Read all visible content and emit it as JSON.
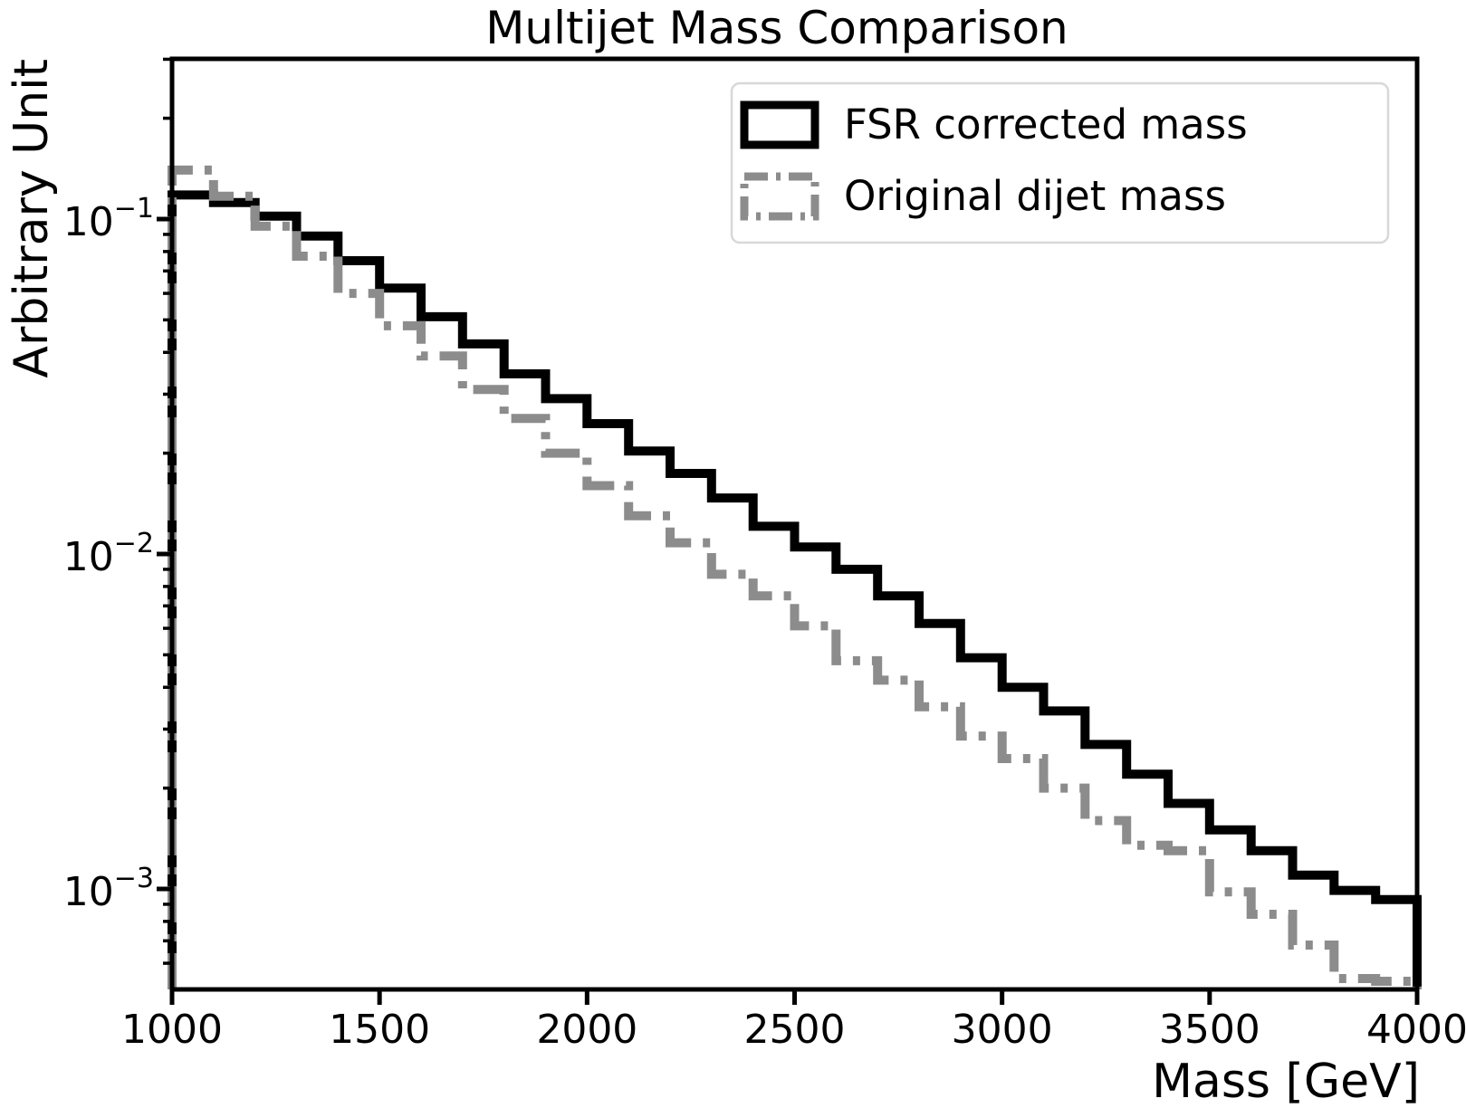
{
  "title": "Multijet Mass Comparison",
  "axes": {
    "xlabel": "Mass [GeV]",
    "ylabel": "Arbitrary Unit",
    "x_tick_labels": [
      "1000",
      "1500",
      "2000",
      "2500",
      "3000",
      "3500",
      "4000"
    ],
    "x_tick_values": [
      1000,
      1500,
      2000,
      2500,
      3000,
      3500,
      4000
    ],
    "y_tick_exponents": [
      "−1",
      "−2",
      "−3"
    ],
    "y_tick_values": [
      0.1,
      0.01,
      0.001
    ],
    "y_scale": "log",
    "grid": false
  },
  "legend": {
    "position": "upper right",
    "items": [
      {
        "label": "FSR corrected mass",
        "color": "#000000",
        "style": "solid"
      },
      {
        "label": "Original dijet mass",
        "color": "#8c8c8c",
        "style": "dashdot"
      }
    ]
  },
  "colors": {
    "fsr_line": "#000000",
    "dijet_line": "#8c8c8c",
    "legend_border": "#d8d8d8",
    "background": "#ffffff"
  },
  "chart_data": {
    "type": "step-histogram",
    "title": "Multijet Mass Comparison",
    "xlabel": "Mass [GeV]",
    "ylabel": "Arbitrary Unit",
    "xlim": [
      1000,
      4000
    ],
    "ylim": [
      0.0005,
      0.3
    ],
    "bin_edges": [
      1000,
      1100,
      1200,
      1300,
      1400,
      1500,
      1600,
      1700,
      1800,
      1900,
      2000,
      2100,
      2200,
      2300,
      2400,
      2500,
      2600,
      2700,
      2800,
      2900,
      3000,
      3100,
      3200,
      3300,
      3400,
      3500,
      3600,
      3700,
      3800,
      3900,
      4000
    ],
    "series": [
      {
        "name": "FSR corrected mass",
        "color": "#000000",
        "style": "solid",
        "values": [
          0.118,
          0.112,
          0.102,
          0.089,
          0.0751,
          0.0622,
          0.0511,
          0.0424,
          0.0345,
          0.0291,
          0.0245,
          0.0203,
          0.0174,
          0.0147,
          0.0121,
          0.0105,
          0.009,
          0.0075,
          0.0062,
          0.0049,
          0.004,
          0.0034,
          0.0027,
          0.0022,
          0.0018,
          0.0015,
          0.0013,
          0.0011,
          0.00099,
          0.00093
        ]
      },
      {
        "name": "Original dijet mass",
        "color": "#8c8c8c",
        "style": "dashdot",
        "values": [
          0.14,
          0.117,
          0.0952,
          0.0775,
          0.06,
          0.048,
          0.039,
          0.031,
          0.0254,
          0.02,
          0.016,
          0.013,
          0.0108,
          0.0087,
          0.0075,
          0.0061,
          0.0048,
          0.0042,
          0.0035,
          0.00286,
          0.00245,
          0.002,
          0.0016,
          0.00135,
          0.0013,
          0.00098,
          0.00084,
          0.00068,
          0.00054,
          0.00053
        ]
      }
    ]
  }
}
